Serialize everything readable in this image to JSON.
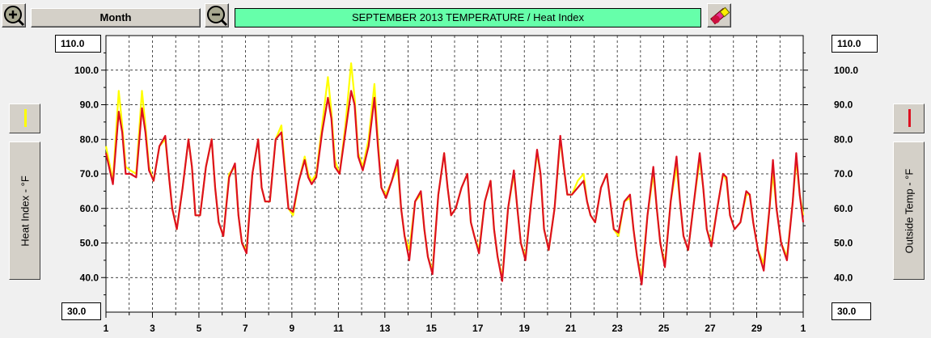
{
  "toolbar": {
    "zoom_in_icon": "zoom-in-icon",
    "zoom_out_icon": "zoom-out-icon",
    "month_label": "Month",
    "title": "SEPTEMBER   2013   TEMPERATURE / Heat Index",
    "eraser_icon": "eraser-icon"
  },
  "left_axis": {
    "max_box": "110.0",
    "min_box": "30.0",
    "label": "Heat Index - °F"
  },
  "right_axis": {
    "max_box": "110.0",
    "min_box": "30.0",
    "label": "Outside Temp - °F"
  },
  "colors": {
    "heat_index": "#ffff00",
    "outside_temp": "#dd1020",
    "title_bg": "#66ffaa"
  },
  "chart_data": {
    "type": "line",
    "title": "SEPTEMBER   2013   TEMPERATURE / Heat Index",
    "ylabel_left": "Heat Index - °F",
    "ylabel_right": "Outside Temp - °F",
    "ylim": [
      30,
      110
    ],
    "yticks": [
      "40.0",
      "50.0",
      "60.0",
      "70.0",
      "80.0",
      "90.0",
      "100.0"
    ],
    "xlim": [
      1,
      31
    ],
    "xticks": [
      "1",
      "3",
      "5",
      "7",
      "9",
      "11",
      "13",
      "15",
      "17",
      "19",
      "21",
      "23",
      "25",
      "27",
      "29",
      "1"
    ],
    "x_tick_days": [
      1,
      3,
      5,
      7,
      9,
      11,
      13,
      15,
      17,
      19,
      21,
      23,
      25,
      27,
      29,
      31
    ],
    "grid": true,
    "series": [
      {
        "name": "Heat Index",
        "color": "#ffff00",
        "x": [
          1.0,
          1.3,
          1.55,
          1.7,
          1.85,
          2.05,
          2.3,
          2.55,
          2.7,
          2.85,
          3.05,
          3.3,
          3.55,
          3.7,
          3.85,
          4.05,
          4.3,
          4.55,
          4.7,
          4.85,
          5.05,
          5.3,
          5.55,
          5.7,
          5.85,
          6.05,
          6.3,
          6.55,
          6.7,
          6.85,
          7.05,
          7.3,
          7.55,
          7.7,
          7.85,
          8.05,
          8.3,
          8.55,
          8.7,
          8.85,
          9.05,
          9.3,
          9.55,
          9.7,
          9.85,
          10.05,
          10.3,
          10.55,
          10.7,
          10.85,
          11.05,
          11.3,
          11.55,
          11.7,
          11.85,
          12.05,
          12.3,
          12.55,
          12.7,
          12.85,
          13.05,
          13.3,
          13.55,
          13.7,
          13.85,
          14.05,
          14.3,
          14.55,
          14.7,
          14.85,
          15.05,
          15.3,
          15.55,
          15.7,
          15.85,
          16.05,
          16.3,
          16.55,
          16.7,
          16.85,
          17.05,
          17.3,
          17.55,
          17.7,
          17.85,
          18.05,
          18.3,
          18.55,
          18.7,
          18.85,
          19.05,
          19.3,
          19.55,
          19.7,
          19.85,
          20.05,
          20.3,
          20.55,
          20.7,
          20.85,
          21.05,
          21.3,
          21.55,
          21.7,
          21.85,
          22.05,
          22.3,
          22.55,
          22.7,
          22.85,
          23.05,
          23.3,
          23.55,
          23.7,
          23.85,
          24.05,
          24.3,
          24.55,
          24.7,
          24.85,
          25.05,
          25.3,
          25.55,
          25.7,
          25.85,
          26.05,
          26.3,
          26.55,
          26.7,
          26.85,
          27.05,
          27.3,
          27.55,
          27.7,
          27.85,
          28.05,
          28.3,
          28.55,
          28.7,
          28.85,
          29.05,
          29.3,
          29.55,
          29.7,
          29.85,
          30.05,
          30.3,
          30.55,
          30.7,
          30.85,
          31.0
        ],
        "values": [
          78,
          68,
          94,
          84,
          72,
          71,
          70,
          94,
          84,
          72,
          68,
          78,
          80,
          70,
          60,
          54,
          66,
          80,
          72,
          58,
          58,
          72,
          80,
          66,
          56,
          52,
          70,
          72,
          58,
          50,
          48,
          70,
          80,
          66,
          62,
          62,
          80,
          84,
          72,
          60,
          58,
          68,
          75,
          70,
          68,
          70,
          84,
          98,
          88,
          74,
          70,
          84,
          102,
          92,
          76,
          72,
          80,
          96,
          80,
          66,
          64,
          68,
          72,
          60,
          52,
          48,
          62,
          64,
          54,
          46,
          42,
          64,
          76,
          66,
          58,
          60,
          66,
          70,
          56,
          52,
          48,
          62,
          68,
          54,
          46,
          40,
          60,
          70,
          60,
          50,
          46,
          62,
          76,
          70,
          54,
          48,
          60,
          80,
          72,
          64,
          64,
          68,
          70,
          62,
          58,
          56,
          66,
          70,
          62,
          54,
          52,
          62,
          63,
          54,
          46,
          40,
          58,
          70,
          60,
          50,
          44,
          62,
          72,
          62,
          52,
          48,
          62,
          74,
          66,
          54,
          50,
          60,
          70,
          68,
          58,
          54,
          56,
          64,
          64,
          56,
          48,
          44,
          60,
          70,
          60,
          50,
          46,
          62,
          74,
          64,
          58
        ]
      },
      {
        "name": "Outside Temp",
        "color": "#dd1020",
        "x": [
          1.0,
          1.3,
          1.55,
          1.7,
          1.85,
          2.05,
          2.3,
          2.55,
          2.7,
          2.85,
          3.05,
          3.3,
          3.55,
          3.7,
          3.85,
          4.05,
          4.3,
          4.55,
          4.7,
          4.85,
          5.05,
          5.3,
          5.55,
          5.7,
          5.85,
          6.05,
          6.3,
          6.55,
          6.7,
          6.85,
          7.05,
          7.3,
          7.55,
          7.7,
          7.85,
          8.05,
          8.3,
          8.55,
          8.7,
          8.85,
          9.05,
          9.3,
          9.55,
          9.7,
          9.85,
          10.05,
          10.3,
          10.55,
          10.7,
          10.85,
          11.05,
          11.3,
          11.55,
          11.7,
          11.85,
          12.05,
          12.3,
          12.55,
          12.7,
          12.85,
          13.05,
          13.3,
          13.55,
          13.7,
          13.85,
          14.05,
          14.3,
          14.55,
          14.7,
          14.85,
          15.05,
          15.3,
          15.55,
          15.7,
          15.85,
          16.05,
          16.3,
          16.55,
          16.7,
          16.85,
          17.05,
          17.3,
          17.55,
          17.7,
          17.85,
          18.05,
          18.3,
          18.55,
          18.7,
          18.85,
          19.05,
          19.3,
          19.55,
          19.7,
          19.85,
          20.05,
          20.3,
          20.55,
          20.7,
          20.85,
          21.05,
          21.3,
          21.55,
          21.7,
          21.85,
          22.05,
          22.3,
          22.55,
          22.7,
          22.85,
          23.05,
          23.3,
          23.55,
          23.7,
          23.85,
          24.05,
          24.3,
          24.55,
          24.7,
          24.85,
          25.05,
          25.3,
          25.55,
          25.7,
          25.85,
          26.05,
          26.3,
          26.55,
          26.7,
          26.85,
          27.05,
          27.3,
          27.55,
          27.7,
          27.85,
          28.05,
          28.3,
          28.55,
          28.7,
          28.85,
          29.05,
          29.3,
          29.55,
          29.7,
          29.85,
          30.05,
          30.3,
          30.55,
          30.7,
          30.85,
          31.0
        ],
        "values": [
          76,
          67,
          88,
          82,
          70,
          70,
          69,
          89,
          82,
          71,
          68,
          78,
          81,
          70,
          60,
          54,
          66,
          80,
          72,
          58,
          58,
          72,
          80,
          66,
          56,
          52,
          69,
          73,
          58,
          50,
          47,
          70,
          80,
          66,
          62,
          62,
          80,
          82,
          71,
          60,
          59,
          68,
          74,
          69,
          67,
          69,
          82,
          92,
          86,
          72,
          70,
          82,
          94,
          90,
          75,
          71,
          78,
          92,
          78,
          66,
          63,
          68,
          74,
          60,
          52,
          45,
          62,
          65,
          54,
          46,
          41,
          64,
          76,
          66,
          58,
          60,
          66,
          70,
          56,
          52,
          47,
          62,
          68,
          54,
          46,
          39,
          60,
          71,
          60,
          50,
          45,
          62,
          77,
          70,
          54,
          48,
          60,
          81,
          72,
          64,
          64,
          66,
          68,
          62,
          58,
          56,
          66,
          70,
          62,
          54,
          53,
          62,
          64,
          54,
          46,
          38,
          58,
          72,
          60,
          50,
          43,
          62,
          75,
          62,
          52,
          48,
          62,
          76,
          66,
          54,
          49,
          60,
          70,
          69,
          58,
          54,
          56,
          65,
          64,
          56,
          48,
          42,
          60,
          74,
          60,
          50,
          45,
          62,
          76,
          64,
          56
        ]
      }
    ]
  }
}
